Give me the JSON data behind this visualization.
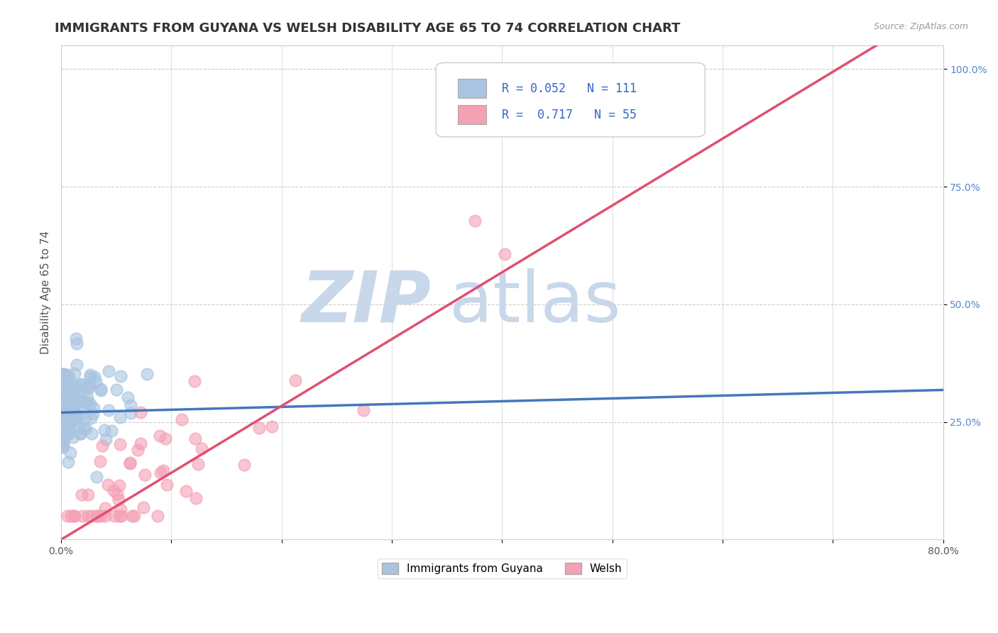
{
  "title": "IMMIGRANTS FROM GUYANA VS WELSH DISABILITY AGE 65 TO 74 CORRELATION CHART",
  "source_text": "Source: ZipAtlas.com",
  "ylabel": "Disability Age 65 to 74",
  "xlim": [
    0.0,
    0.8
  ],
  "ylim": [
    0.0,
    1.05
  ],
  "xticks": [
    0.0,
    0.1,
    0.2,
    0.3,
    0.4,
    0.5,
    0.6,
    0.7,
    0.8
  ],
  "xticklabels": [
    "0.0%",
    "",
    "",
    "",
    "",
    "",
    "",
    "",
    "80.0%"
  ],
  "ytick_positions": [
    0.25,
    0.5,
    0.75,
    1.0
  ],
  "ytick_labels": [
    "25.0%",
    "50.0%",
    "75.0%",
    "100.0%"
  ],
  "blue_R": 0.052,
  "blue_N": 111,
  "pink_R": 0.717,
  "pink_N": 55,
  "blue_color": "#a8c4e0",
  "pink_color": "#f4a0b5",
  "blue_line_color": "#4477bb",
  "pink_line_color": "#e05070",
  "watermark_zip": "ZIP",
  "watermark_atlas": "atlas",
  "watermark_color": "#c8d8ea",
  "legend_label_blue": "Immigrants from Guyana",
  "legend_label_pink": "Welsh",
  "background_color": "#ffffff",
  "grid_color": "#e0e0e0",
  "grid_dash_color": "#cccccc",
  "title_fontsize": 13,
  "axis_label_fontsize": 11,
  "tick_fontsize": 10,
  "legend_fontsize": 11,
  "blue_seed": 42,
  "pink_seed": 123,
  "blue_line_intercept": 0.27,
  "blue_line_slope": 0.06,
  "pink_line_intercept": 0.0,
  "pink_line_slope": 1.42
}
